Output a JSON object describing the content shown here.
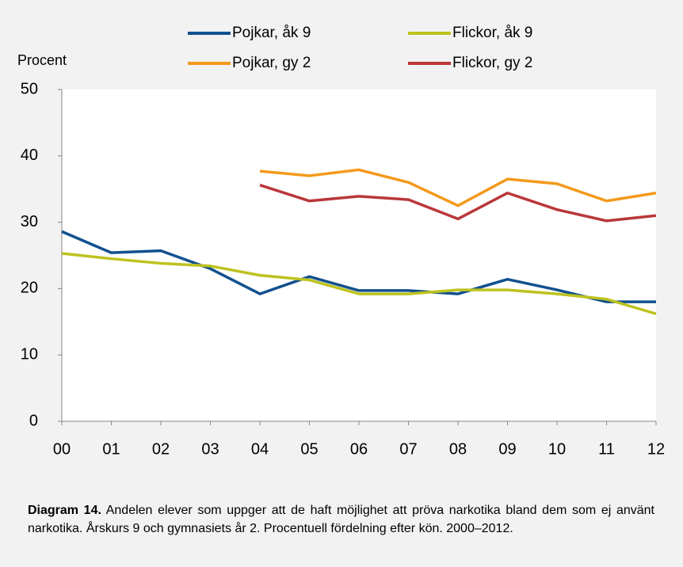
{
  "chart_data": {
    "type": "line",
    "y_label": "Procent",
    "categories": [
      "00",
      "01",
      "02",
      "03",
      "04",
      "05",
      "06",
      "07",
      "08",
      "09",
      "10",
      "11",
      "12"
    ],
    "series": [
      {
        "name": "Pojkar, åk 9",
        "color": "#12508f",
        "values": [
          28.6,
          25.4,
          25.7,
          23.0,
          19.2,
          21.8,
          19.7,
          19.7,
          19.2,
          21.4,
          19.8,
          18.0,
          18.0
        ]
      },
      {
        "name": "Flickor, åk 9",
        "color": "#bdc21f",
        "values": [
          25.3,
          24.5,
          23.8,
          23.4,
          22.0,
          21.3,
          19.2,
          19.2,
          19.8,
          19.8,
          19.2,
          18.4,
          16.2
        ]
      },
      {
        "name": "Pojkar, gy 2",
        "color": "#f4991c",
        "values": [
          null,
          null,
          null,
          null,
          37.7,
          37.0,
          37.9,
          36.0,
          32.5,
          36.5,
          35.8,
          33.2,
          34.4
        ]
      },
      {
        "name": "Flickor, gy 2",
        "color": "#b9373a",
        "values": [
          null,
          null,
          null,
          null,
          35.6,
          33.2,
          33.9,
          33.4,
          30.5,
          34.4,
          31.9,
          30.2,
          31.0
        ]
      }
    ],
    "ylim": [
      0,
      50
    ],
    "yticks": [
      0,
      10,
      20,
      30,
      40,
      50
    ],
    "grid": false,
    "legend": "top",
    "caption": {
      "label": "Diagram 14.",
      "text": "Andelen elever som uppger att de haft möjlighet att pröva narkotika bland dem som ej använt narkotika. Årskurs 9 och gymnasiets år 2. Procentuell fördelning efter kön. 2000–2012."
    }
  }
}
